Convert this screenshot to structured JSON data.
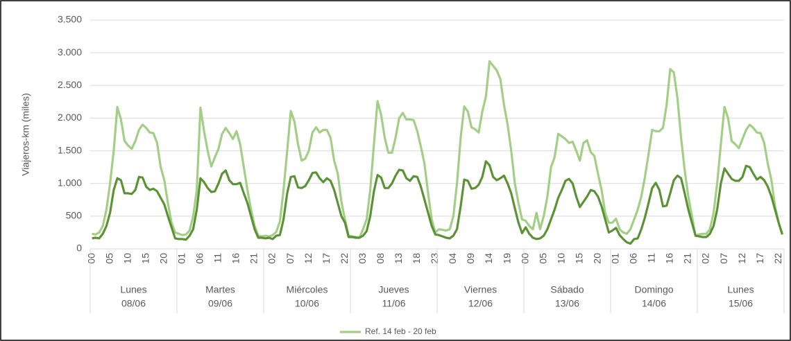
{
  "chart_data": {
    "type": "line",
    "y_label": "Viajeros-km (miles)",
    "categories": [
      "00",
      null,
      null,
      null,
      null,
      "05",
      null,
      null,
      null,
      null,
      "10",
      null,
      null,
      null,
      null,
      "15",
      null,
      null,
      null,
      null,
      "20",
      null,
      null,
      null,
      null,
      "01",
      null,
      null,
      null,
      null,
      "06",
      null,
      null,
      null,
      null,
      "11",
      null,
      null,
      null,
      null,
      "16",
      null,
      null,
      null,
      null,
      "21",
      null,
      null,
      null,
      null,
      "02",
      null,
      null,
      null,
      null,
      "07",
      null,
      null,
      null,
      null,
      "12",
      null,
      null,
      null,
      null,
      "17",
      null,
      null,
      null,
      null,
      "22",
      null,
      null,
      null,
      null,
      "03",
      null,
      null,
      null,
      null,
      "08",
      null,
      null,
      null,
      null,
      "13",
      null,
      null,
      null,
      null,
      "18",
      null,
      null,
      null,
      null,
      "23",
      null,
      null,
      null,
      null,
      "04",
      null,
      null,
      null,
      null,
      "09",
      null,
      null,
      null,
      null,
      "14",
      null,
      null,
      null,
      null,
      "19",
      null,
      null,
      null,
      null,
      "00",
      null,
      null,
      null,
      null,
      "05",
      null,
      null,
      null,
      null,
      "10",
      null,
      null,
      null,
      null,
      "15",
      null,
      null,
      null,
      null,
      "20",
      null,
      null,
      null,
      null,
      "01",
      null,
      null,
      null,
      null,
      "06",
      null,
      null,
      null,
      null,
      "11",
      null,
      null,
      null,
      null,
      "16",
      null,
      null,
      null,
      null,
      "21",
      null,
      null,
      null,
      null,
      "02",
      null,
      null,
      null,
      null,
      "07",
      null,
      null,
      null,
      null,
      "12",
      null,
      null,
      null,
      null,
      "17",
      null,
      null,
      null,
      null,
      "22",
      null
    ],
    "groups": [
      {
        "name": "Lunes",
        "date": "08/06"
      },
      {
        "name": "Martes",
        "date": "09/06"
      },
      {
        "name": "Miércoles",
        "date": "10/06"
      },
      {
        "name": "Jueves",
        "date": "11/06"
      },
      {
        "name": "Viernes",
        "date": "12/06"
      },
      {
        "name": "Sábado",
        "date": "13/06"
      },
      {
        "name": "Domingo",
        "date": "14/06"
      },
      {
        "name": "Lunes",
        "date": "15/06"
      }
    ],
    "series": [
      {
        "name": "Ref. 14 feb - 20 feb",
        "color": "#a2cf85",
        "values": [
          230,
          220,
          250,
          350,
          600,
          1000,
          1500,
          2170,
          1980,
          1650,
          1580,
          1530,
          1650,
          1820,
          1900,
          1850,
          1780,
          1770,
          1620,
          1250,
          1050,
          700,
          400,
          250,
          230,
          210,
          220,
          280,
          500,
          900,
          2160,
          1800,
          1500,
          1260,
          1400,
          1530,
          1760,
          1850,
          1770,
          1680,
          1800,
          1600,
          1250,
          900,
          600,
          350,
          200,
          190,
          200,
          190,
          210,
          260,
          420,
          900,
          1500,
          2110,
          1950,
          1600,
          1350,
          1380,
          1500,
          1780,
          1860,
          1780,
          1820,
          1820,
          1700,
          1350,
          1150,
          720,
          450,
          200,
          190,
          180,
          170,
          300,
          450,
          900,
          1600,
          2260,
          2050,
          1700,
          1470,
          1470,
          1700,
          2000,
          2080,
          1980,
          1980,
          1970,
          1800,
          1560,
          1300,
          850,
          450,
          250,
          300,
          290,
          280,
          300,
          500,
          1000,
          1700,
          2180,
          2100,
          1860,
          1830,
          1780,
          2100,
          2330,
          2870,
          2800,
          2730,
          2600,
          2200,
          1900,
          1500,
          1000,
          700,
          450,
          430,
          350,
          300,
          550,
          300,
          500,
          800,
          1250,
          1400,
          1760,
          1720,
          1680,
          1620,
          1640,
          1500,
          1350,
          1620,
          1660,
          1480,
          1420,
          1150,
          900,
          550,
          400,
          400,
          460,
          300,
          250,
          230,
          300,
          450,
          600,
          800,
          1100,
          1450,
          1820,
          1800,
          1800,
          1850,
          2200,
          2750,
          2700,
          2300,
          1700,
          1200,
          800,
          500,
          200,
          220,
          230,
          230,
          300,
          550,
          1000,
          1600,
          2170,
          2000,
          1650,
          1600,
          1540,
          1680,
          1820,
          1900,
          1850,
          1780,
          1770,
          1620,
          1300,
          1050,
          650,
          400,
          230
        ]
      },
      {
        "color": "#5b9234",
        "values": [
          160,
          170,
          160,
          230,
          350,
          550,
          900,
          1080,
          1050,
          850,
          850,
          840,
          900,
          1100,
          1090,
          950,
          900,
          920,
          880,
          780,
          680,
          500,
          330,
          160,
          150,
          150,
          140,
          200,
          300,
          600,
          1080,
          1020,
          930,
          870,
          880,
          1000,
          1150,
          1200,
          1050,
          990,
          990,
          1010,
          850,
          700,
          500,
          300,
          170,
          170,
          160,
          170,
          150,
          200,
          210,
          450,
          850,
          1100,
          1110,
          940,
          930,
          960,
          1050,
          1160,
          1170,
          1080,
          1020,
          1080,
          1040,
          900,
          700,
          500,
          400,
          180,
          180,
          170,
          170,
          200,
          270,
          500,
          880,
          1130,
          1090,
          930,
          930,
          1000,
          1120,
          1210,
          1200,
          1080,
          1040,
          1110,
          1100,
          950,
          750,
          550,
          350,
          220,
          210,
          190,
          170,
          160,
          200,
          300,
          650,
          1060,
          1040,
          920,
          930,
          980,
          1100,
          1340,
          1280,
          1100,
          1050,
          1080,
          1120,
          1000,
          850,
          620,
          400,
          240,
          330,
          230,
          170,
          150,
          160,
          200,
          300,
          450,
          600,
          780,
          900,
          1040,
          1070,
          1000,
          800,
          640,
          720,
          800,
          900,
          880,
          800,
          650,
          450,
          250,
          280,
          320,
          210,
          150,
          100,
          80,
          150,
          160,
          300,
          480,
          700,
          930,
          1010,
          900,
          650,
          660,
          850,
          1050,
          1120,
          1080,
          850,
          600,
          400,
          200,
          190,
          180,
          180,
          230,
          350,
          600,
          1000,
          1230,
          1150,
          1070,
          1040,
          1040,
          1100,
          1270,
          1250,
          1150,
          1060,
          1100,
          1050,
          950,
          800,
          600,
          400,
          220
        ]
      }
    ],
    "ylim": [
      0,
      3500
    ],
    "yticks": [
      0,
      500,
      {
        "value": 1000,
        "label": "1.000"
      },
      {
        "value": 1500,
        "label": "1.500"
      },
      {
        "value": 2000,
        "label": "2.000"
      },
      {
        "value": 2500,
        "label": "2.500"
      },
      {
        "value": 3000,
        "label": "3.000"
      },
      {
        "value": 3500,
        "label": "3.500"
      }
    ],
    "grid": true,
    "legend": "bottom"
  }
}
